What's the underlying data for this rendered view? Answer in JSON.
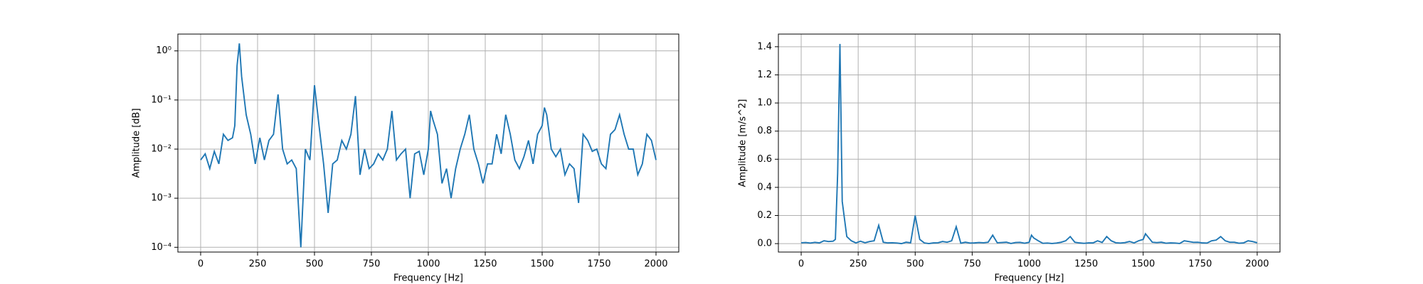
{
  "chart_data": [
    {
      "type": "line",
      "xlabel": "Frequency [Hz]",
      "ylabel": "Amplitude [dB]",
      "log_y": true,
      "grid": true,
      "color": "#1f77b4",
      "xlim": [
        -100,
        2100
      ],
      "xticks": [
        0,
        250,
        500,
        750,
        1000,
        1250,
        1500,
        1750,
        2000
      ],
      "ylim": [
        8e-05,
        2.2
      ],
      "yticks": [
        {
          "value": 0.0001,
          "label": "10⁻⁴"
        },
        {
          "value": 0.001,
          "label": "10⁻³"
        },
        {
          "value": 0.01,
          "label": "10⁻²"
        },
        {
          "value": 0.1,
          "label": "10⁻¹"
        },
        {
          "value": 1,
          "label": "10⁰"
        }
      ],
      "x": [
        0,
        20,
        40,
        60,
        80,
        100,
        120,
        140,
        150,
        160,
        170,
        180,
        200,
        220,
        240,
        260,
        280,
        300,
        320,
        340,
        360,
        380,
        400,
        420,
        440,
        460,
        480,
        500,
        520,
        540,
        560,
        580,
        600,
        620,
        640,
        660,
        680,
        700,
        720,
        740,
        760,
        780,
        800,
        820,
        840,
        860,
        880,
        900,
        920,
        940,
        960,
        980,
        1000,
        1010,
        1020,
        1040,
        1060,
        1080,
        1100,
        1120,
        1140,
        1160,
        1180,
        1200,
        1220,
        1240,
        1260,
        1280,
        1300,
        1320,
        1340,
        1360,
        1380,
        1400,
        1420,
        1440,
        1460,
        1480,
        1500,
        1510,
        1520,
        1540,
        1560,
        1580,
        1600,
        1620,
        1640,
        1660,
        1680,
        1700,
        1720,
        1740,
        1760,
        1780,
        1800,
        1820,
        1840,
        1860,
        1880,
        1900,
        1920,
        1940,
        1960,
        1980,
        2000
      ],
      "values": [
        0.006,
        0.008,
        0.004,
        0.009,
        0.005,
        0.02,
        0.015,
        0.017,
        0.03,
        0.5,
        1.42,
        0.3,
        0.05,
        0.02,
        0.005,
        0.017,
        0.006,
        0.015,
        0.02,
        0.13,
        0.01,
        0.005,
        0.006,
        0.004,
        0.0001,
        0.01,
        0.006,
        0.2,
        0.03,
        0.005,
        0.0005,
        0.005,
        0.006,
        0.015,
        0.01,
        0.02,
        0.12,
        0.003,
        0.01,
        0.004,
        0.005,
        0.008,
        0.006,
        0.01,
        0.06,
        0.006,
        0.008,
        0.01,
        0.001,
        0.008,
        0.009,
        0.003,
        0.01,
        0.06,
        0.04,
        0.02,
        0.002,
        0.004,
        0.001,
        0.004,
        0.01,
        0.02,
        0.05,
        0.01,
        0.005,
        0.002,
        0.005,
        0.005,
        0.02,
        0.008,
        0.05,
        0.02,
        0.006,
        0.004,
        0.007,
        0.015,
        0.005,
        0.02,
        0.03,
        0.07,
        0.05,
        0.01,
        0.007,
        0.01,
        0.003,
        0.005,
        0.004,
        0.0008,
        0.02,
        0.015,
        0.009,
        0.01,
        0.005,
        0.004,
        0.02,
        0.025,
        0.05,
        0.02,
        0.01,
        0.01,
        0.003,
        0.005,
        0.02,
        0.015,
        0.006
      ]
    },
    {
      "type": "line",
      "xlabel": "Frequency [Hz]",
      "ylabel": "Amplitude [m/s^2]",
      "log_y": false,
      "grid": true,
      "color": "#1f77b4",
      "xlim": [
        -100,
        2100
      ],
      "xticks": [
        0,
        250,
        500,
        750,
        1000,
        1250,
        1500,
        1750,
        2000
      ],
      "ylim": [
        -0.06,
        1.49
      ],
      "yticks": [
        {
          "value": 0,
          "label": "0.0"
        },
        0.2,
        0.4,
        0.6,
        0.8,
        {
          "value": 1,
          "label": "1.0"
        },
        1.2,
        1.4
      ],
      "x": [
        0,
        20,
        40,
        60,
        80,
        100,
        120,
        140,
        150,
        160,
        170,
        180,
        200,
        220,
        240,
        260,
        280,
        300,
        320,
        340,
        360,
        380,
        400,
        420,
        440,
        460,
        480,
        500,
        520,
        540,
        560,
        580,
        600,
        620,
        640,
        660,
        680,
        700,
        720,
        740,
        760,
        780,
        800,
        820,
        840,
        860,
        880,
        900,
        920,
        940,
        960,
        980,
        1000,
        1010,
        1020,
        1040,
        1060,
        1080,
        1100,
        1120,
        1140,
        1160,
        1180,
        1200,
        1220,
        1240,
        1260,
        1280,
        1300,
        1320,
        1340,
        1360,
        1380,
        1400,
        1420,
        1440,
        1460,
        1480,
        1500,
        1510,
        1520,
        1540,
        1560,
        1580,
        1600,
        1620,
        1640,
        1660,
        1680,
        1700,
        1720,
        1740,
        1760,
        1780,
        1800,
        1820,
        1840,
        1860,
        1880,
        1900,
        1920,
        1940,
        1960,
        1980,
        2000
      ],
      "values": [
        0.006,
        0.008,
        0.004,
        0.009,
        0.005,
        0.02,
        0.015,
        0.017,
        0.03,
        0.5,
        1.42,
        0.3,
        0.05,
        0.02,
        0.005,
        0.017,
        0.006,
        0.015,
        0.02,
        0.13,
        0.01,
        0.005,
        0.006,
        0.004,
        0.0001,
        0.01,
        0.006,
        0.2,
        0.03,
        0.005,
        0.0005,
        0.005,
        0.006,
        0.015,
        0.01,
        0.02,
        0.12,
        0.003,
        0.01,
        0.004,
        0.005,
        0.008,
        0.006,
        0.01,
        0.06,
        0.006,
        0.008,
        0.01,
        0.001,
        0.008,
        0.009,
        0.003,
        0.01,
        0.06,
        0.04,
        0.02,
        0.002,
        0.004,
        0.001,
        0.004,
        0.01,
        0.02,
        0.05,
        0.01,
        0.005,
        0.002,
        0.005,
        0.005,
        0.02,
        0.008,
        0.05,
        0.02,
        0.006,
        0.004,
        0.007,
        0.015,
        0.005,
        0.02,
        0.03,
        0.07,
        0.05,
        0.01,
        0.007,
        0.01,
        0.003,
        0.005,
        0.004,
        0.0008,
        0.02,
        0.015,
        0.009,
        0.01,
        0.005,
        0.004,
        0.02,
        0.025,
        0.05,
        0.02,
        0.01,
        0.01,
        0.003,
        0.005,
        0.02,
        0.015,
        0.006
      ]
    }
  ]
}
